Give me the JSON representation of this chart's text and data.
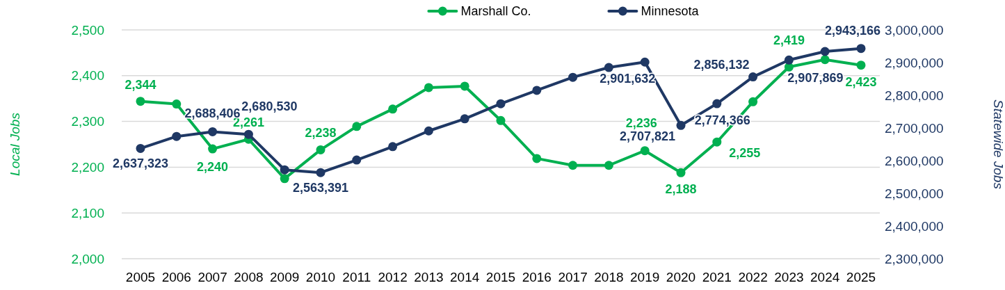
{
  "chart_data": {
    "type": "line",
    "categories": [
      "2005",
      "2006",
      "2007",
      "2008",
      "2009",
      "2010",
      "2011",
      "2012",
      "2013",
      "2014",
      "2015",
      "2016",
      "2017",
      "2018",
      "2019",
      "2020",
      "2021",
      "2022",
      "2023",
      "2024",
      "2025"
    ],
    "ylabel": "Local Jobs",
    "y2label": "Statewide Jobs",
    "ylim": [
      2000,
      2500
    ],
    "yticks": [
      {
        "value": 2000,
        "label": "2,000"
      },
      {
        "value": 2100,
        "label": "2,100"
      },
      {
        "value": 2200,
        "label": "2,200"
      },
      {
        "value": 2300,
        "label": "2,300"
      },
      {
        "value": 2400,
        "label": "2,400"
      },
      {
        "value": 2500,
        "label": "2,500"
      }
    ],
    "y2lim": [
      2300000,
      3000000
    ],
    "y2ticks": [
      {
        "value": 2300000,
        "label": "2,300,000"
      },
      {
        "value": 2400000,
        "label": "2,400,000"
      },
      {
        "value": 2500000,
        "label": "2,500,000"
      },
      {
        "value": 2600000,
        "label": "2,600,000"
      },
      {
        "value": 2700000,
        "label": "2,700,000"
      },
      {
        "value": 2800000,
        "label": "2,800,000"
      },
      {
        "value": 2900000,
        "label": "2,900,000"
      },
      {
        "value": 3000000,
        "label": "3,000,000"
      }
    ],
    "grid": "y",
    "legend": "top",
    "marker": "circle",
    "line_style": "solid",
    "series": [
      {
        "name": "Marshall Co.",
        "color": "#00b050",
        "values": [
          2344,
          2338,
          2240,
          2261,
          2175,
          2238,
          2289,
          2327,
          2374,
          2377,
          2302,
          2219,
          2204,
          2204,
          2236,
          2188,
          2255,
          2343,
          2419,
          2435,
          2423
        ],
        "value_labels": [
          "2,344",
          null,
          "2,240",
          "2,261",
          null,
          "2,238",
          null,
          null,
          null,
          null,
          null,
          null,
          null,
          null,
          "2,236",
          "2,188",
          "2,255",
          null,
          "2,419",
          null,
          "2,423"
        ]
      },
      {
        "name": "Minnesota",
        "color": "#1f3864",
        "axis": "y2",
        "values": [
          2637323,
          2674000,
          2688406,
          2680530,
          2572000,
          2563391,
          2602000,
          2643000,
          2691000,
          2728000,
          2774000,
          2815000,
          2855000,
          2885000,
          2901632,
          2707821,
          2774366,
          2856132,
          2907869,
          2934000,
          2943166
        ],
        "value_labels": [
          "2,637,323",
          null,
          "2,688,406",
          "2,680,530",
          null,
          "2,563,391",
          null,
          null,
          null,
          null,
          null,
          null,
          null,
          null,
          "2,901,632",
          "2,707,821",
          "2,774,366",
          "2,856,132",
          "2,907,869",
          null,
          "2,943,166"
        ]
      }
    ]
  }
}
